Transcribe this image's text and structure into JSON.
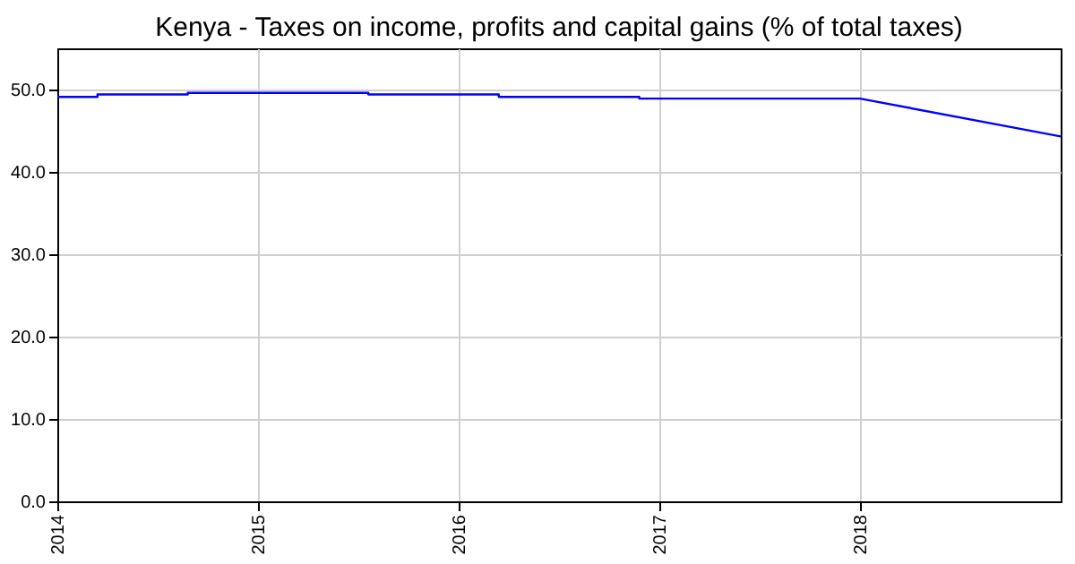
{
  "chart_data": {
    "type": "line",
    "title": "Kenya - Taxes on income, profits and capital gains (% of total taxes)",
    "x": [
      2014,
      2014.2,
      2014.2,
      2014.65,
      2014.65,
      2015.55,
      2015.55,
      2016.2,
      2016.2,
      2016.9,
      2016.9,
      2018,
      2019
    ],
    "series": [
      {
        "color": "#0000ff",
        "values": [
          49.1,
          49.1,
          49.4,
          49.4,
          49.6,
          49.6,
          49.4,
          49.4,
          49.1,
          49.1,
          48.9,
          48.9,
          44.3
        ]
      }
    ],
    "xlim": [
      2014,
      2019
    ],
    "xticks": [
      2014,
      2015,
      2016,
      2017,
      2018
    ],
    "ylim": [
      0,
      55
    ],
    "yticks": [
      {
        "value": 0,
        "label": "0.0"
      },
      {
        "value": 10,
        "label": "10.0"
      },
      {
        "value": 20,
        "label": "20.0"
      },
      {
        "value": 30,
        "label": "30.0"
      },
      {
        "value": 40,
        "label": "40.0"
      },
      {
        "value": 50,
        "label": "50.0"
      }
    ],
    "grid": true,
    "line_style": "solid",
    "marker": "none"
  }
}
